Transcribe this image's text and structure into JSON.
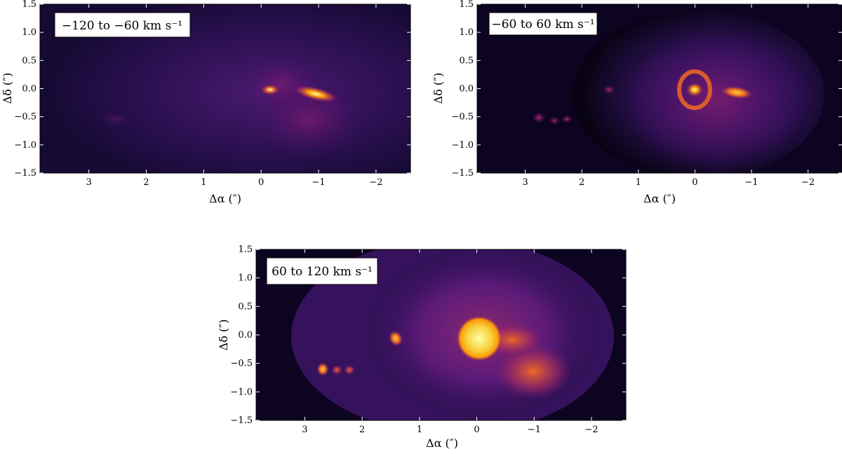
{
  "chart_data": [
    {
      "type": "heatmap",
      "panel_label": "−120 to −60 km s⁻¹",
      "xlabel": "Δα (″)",
      "ylabel": "Δδ (″)",
      "xlim": [
        3.85,
        -2.6
      ],
      "ylim": [
        -1.5,
        1.5
      ],
      "x_ticks": [
        3,
        2,
        1,
        0,
        -1,
        -2
      ],
      "x_tick_labels": [
        "3",
        "2",
        "1",
        "0",
        "−1",
        "−2"
      ],
      "y_ticks": [
        1.5,
        1.0,
        0.5,
        0.0,
        -0.5,
        -1.0,
        -1.5
      ],
      "y_tick_labels": [
        "1.5",
        "1.0",
        "0.5",
        "0.0",
        "−0.5",
        "−1.0",
        "−1.5"
      ],
      "colormap": "inferno",
      "colors": [
        "#000004",
        "#1b0c41",
        "#4a0c6b",
        "#781c6d",
        "#a52c60",
        "#cf4446",
        "#ed6925",
        "#fb9b06",
        "#f7d13d",
        "#fcffa4"
      ],
      "background_color": "#1a0a3a",
      "legend_placement": "top-left"
    },
    {
      "type": "heatmap",
      "panel_label": "−60 to 60 km s⁻¹",
      "xlabel": "Δα (″)",
      "ylabel": "Δδ (″)",
      "xlim": [
        3.85,
        -2.6
      ],
      "ylim": [
        -1.5,
        1.5
      ],
      "x_ticks": [
        3,
        2,
        1,
        0,
        -1,
        -2
      ],
      "x_tick_labels": [
        "3",
        "2",
        "1",
        "0",
        "−1",
        "−2"
      ],
      "y_ticks": [
        1.5,
        1.0,
        0.5,
        0.0,
        -0.5,
        -1.0,
        -1.5
      ],
      "y_tick_labels": [
        "1.5",
        "1.0",
        "0.5",
        "0.0",
        "−0.5",
        "−1.0",
        "−1.5"
      ],
      "colormap": "inferno",
      "background_color": "#0d0520",
      "legend_placement": "top-left"
    },
    {
      "type": "heatmap",
      "panel_label": "60 to 120 km s⁻¹",
      "xlabel": "Δα (″)",
      "ylabel": "Δδ (″)",
      "xlim": [
        3.85,
        -2.6
      ],
      "ylim": [
        -1.5,
        1.5
      ],
      "x_ticks": [
        3,
        2,
        1,
        0,
        -1,
        -2
      ],
      "x_tick_labels": [
        "3",
        "2",
        "1",
        "0",
        "−1",
        "−2"
      ],
      "y_ticks": [
        1.5,
        1.0,
        0.5,
        0.0,
        -0.5,
        -1.0,
        -1.5
      ],
      "y_tick_labels": [
        "1.5",
        "1.0",
        "0.5",
        "0.0",
        "−0.5",
        "−1.0",
        "−1.5"
      ],
      "colormap": "inferno",
      "background_color": "#0d0520",
      "legend_placement": "top-left"
    }
  ]
}
